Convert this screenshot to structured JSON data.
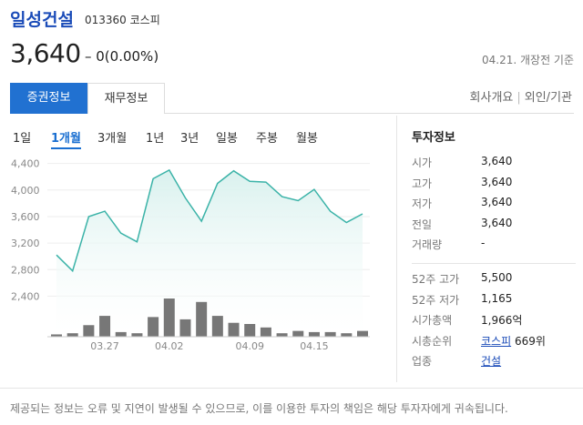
{
  "stock": {
    "name": "일성건설",
    "code": "013360",
    "market": "코스피",
    "price": "3,640",
    "change": "– 0(0.00%)",
    "date_note": "04.21. 개장전 기준"
  },
  "tabs": {
    "active": "증권정보",
    "inactive": "재무정보",
    "link1": "회사개요",
    "link2": "외인/기관"
  },
  "periods": [
    "1일",
    "1개월",
    "3개월",
    "1년",
    "3년",
    "일봉",
    "주봉",
    "월봉"
  ],
  "chart_data": {
    "type": "line",
    "title": "",
    "y_ticks": [
      "4,400",
      "4,000",
      "3,600",
      "3,200",
      "2,800",
      "2,400"
    ],
    "x_ticks": [
      "03.27",
      "04.02",
      "04.09",
      "04.15"
    ],
    "ylim": [
      2200,
      4450
    ],
    "prices": [
      3020,
      2780,
      3600,
      3680,
      3350,
      3220,
      4170,
      4300,
      3880,
      3530,
      4100,
      4290,
      4130,
      4120,
      3900,
      3840,
      4010,
      3680,
      3510,
      3640
    ],
    "volumes": [
      2,
      3,
      10,
      18,
      4,
      3,
      17,
      33,
      15,
      30,
      18,
      12,
      11,
      8,
      3,
      5,
      4,
      4,
      3,
      5
    ],
    "colors": {
      "line": "#3bb3a8",
      "fill": "#d9f1ee",
      "volume": "#777777"
    }
  },
  "info": {
    "title": "투자정보",
    "rows": [
      {
        "label": "시가",
        "value": "3,640"
      },
      {
        "label": "고가",
        "value": "3,640"
      },
      {
        "label": "저가",
        "value": "3,640"
      },
      {
        "label": "전일",
        "value": "3,640"
      },
      {
        "label": "거래량",
        "value": "-"
      }
    ],
    "rows2": [
      {
        "label": "52주 고가",
        "value": "5,500"
      },
      {
        "label": "52주 저가",
        "value": "1,165"
      },
      {
        "label": "시가총액",
        "value": "1,966억"
      }
    ],
    "rank": {
      "label": "시총순위",
      "link": "코스피",
      "value": "669위"
    },
    "industry": {
      "label": "업종",
      "link": "건설"
    }
  },
  "footer": "제공되는 정보는 오류 및 지연이 발생될 수 있으므로, 이를 이용한 투자의 책임은 해당 투자자에게 귀속됩니다."
}
